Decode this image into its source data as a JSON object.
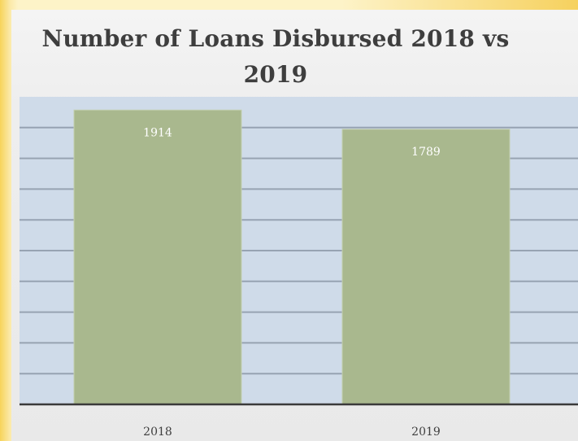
{
  "slide": {
    "background_color": "#fdf3c8"
  },
  "chart_data": {
    "type": "bar",
    "title_lines": [
      "Number of Loans Disbursed 2018 vs",
      "2019"
    ],
    "categories": [
      "2018",
      "2019"
    ],
    "values": [
      1914,
      1789
    ],
    "data_labels": [
      "1914",
      "1789"
    ],
    "ylim": [
      0,
      2000
    ],
    "grid": true,
    "legend": "none",
    "colors": {
      "bar": "#a9b88e",
      "plot_background": "#cfdbe9",
      "gridline": "#8d99a8",
      "axis": "#3a3a3a",
      "label": "#ffffff"
    }
  }
}
